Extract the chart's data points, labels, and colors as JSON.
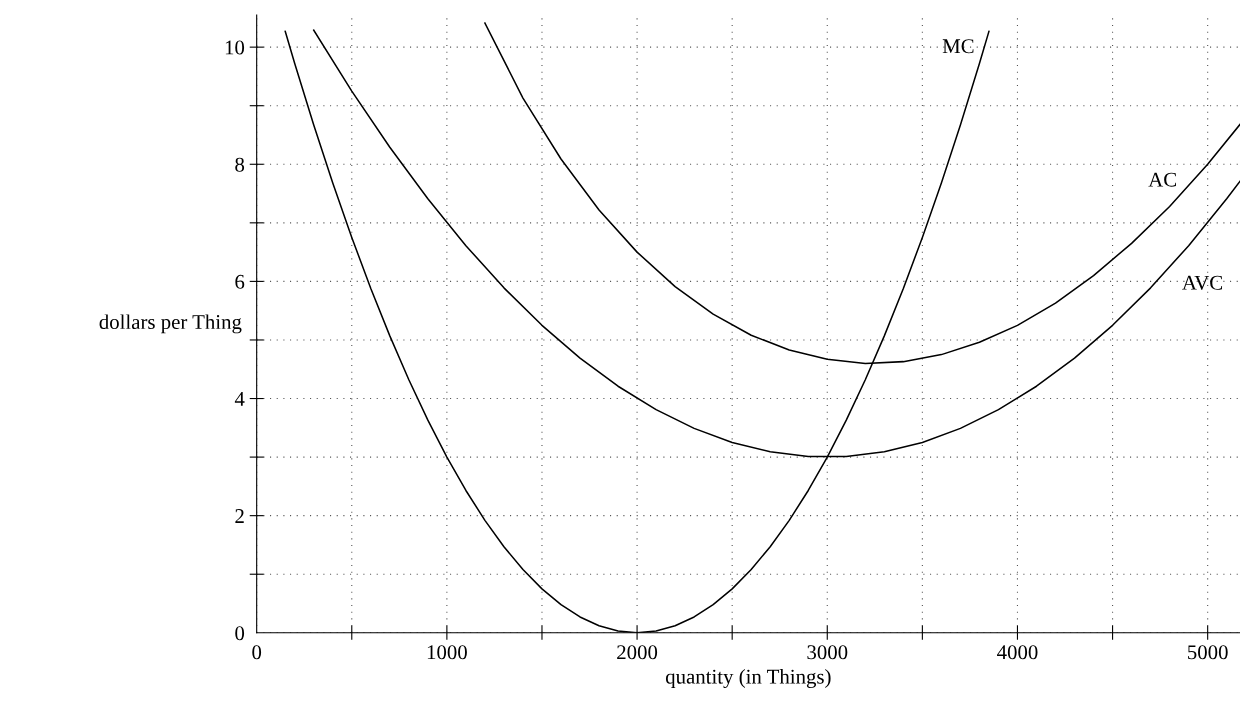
{
  "chart_data": {
    "type": "line",
    "xlabel": "quantity (in Things)",
    "ylabel": "dollars per Thing",
    "xlim": [
      0,
      5170
    ],
    "ylim": [
      0,
      10.55
    ],
    "xticks": [
      0,
      {
        "value": 500,
        "label": null
      },
      1000,
      {
        "value": 1500,
        "label": null
      },
      2000,
      {
        "value": 2500,
        "label": null
      },
      3000,
      {
        "value": 3500,
        "label": null
      },
      4000,
      {
        "value": 4500,
        "label": null
      },
      5000
    ],
    "yticks": [
      0,
      {
        "value": 1,
        "label": null
      },
      2,
      {
        "value": 3,
        "label": null
      },
      4,
      {
        "value": 5,
        "label": null
      },
      6,
      {
        "value": 7,
        "label": null
      },
      8,
      {
        "value": 9,
        "label": null
      },
      10
    ],
    "grid": true,
    "line_style": "solid",
    "marker": "none",
    "series": [
      {
        "name": "MC",
        "color": "#000000",
        "x": [
          150,
          200,
          300,
          400,
          500,
          600,
          700,
          800,
          900,
          1000,
          1100,
          1200,
          1300,
          1400,
          1500,
          1600,
          1700,
          1800,
          1900,
          2000,
          2100,
          2200,
          2300,
          2400,
          2500,
          2600,
          2700,
          2800,
          2900,
          3000,
          3100,
          3200,
          3300,
          3400,
          3500,
          3600,
          3700,
          3800,
          3850
        ],
        "values": [
          10.27,
          9.72,
          8.67,
          7.68,
          6.75,
          5.88,
          5.07,
          4.32,
          3.63,
          3.0,
          2.43,
          1.92,
          1.47,
          1.08,
          0.75,
          0.48,
          0.27,
          0.12,
          0.03,
          0,
          0.03,
          0.12,
          0.27,
          0.48,
          0.75,
          1.08,
          1.47,
          1.92,
          2.43,
          3.0,
          3.63,
          4.32,
          5.07,
          5.88,
          6.75,
          7.68,
          8.67,
          9.72,
          10.27
        ]
      },
      {
        "name": "AC",
        "color": "#000000",
        "x": [
          1200,
          1400,
          1600,
          1800,
          2000,
          2200,
          2400,
          2600,
          2800,
          3000,
          3200,
          3400,
          3600,
          3800,
          4000,
          4200,
          4400,
          4600,
          4800,
          5000,
          5170
        ],
        "values": [
          10.41,
          9.13,
          8.09,
          7.22,
          6.5,
          5.91,
          5.44,
          5.08,
          4.83,
          4.67,
          4.6,
          4.63,
          4.75,
          4.96,
          5.25,
          5.63,
          6.1,
          6.65,
          7.28,
          8.0,
          8.68
        ]
      },
      {
        "name": "AVC",
        "color": "#000000",
        "x": [
          300,
          500,
          700,
          900,
          1100,
          1300,
          1500,
          1700,
          1900,
          2100,
          2300,
          2500,
          2700,
          2900,
          3100,
          3300,
          3500,
          3700,
          3900,
          4100,
          4300,
          4500,
          4700,
          4900,
          5100,
          5170
        ],
        "values": [
          10.29,
          9.25,
          8.29,
          7.41,
          6.61,
          5.89,
          5.25,
          4.69,
          4.21,
          3.81,
          3.49,
          3.25,
          3.09,
          3.01,
          3.01,
          3.09,
          3.25,
          3.49,
          3.81,
          4.21,
          4.69,
          5.25,
          5.89,
          6.61,
          7.41,
          7.71
        ]
      }
    ]
  }
}
